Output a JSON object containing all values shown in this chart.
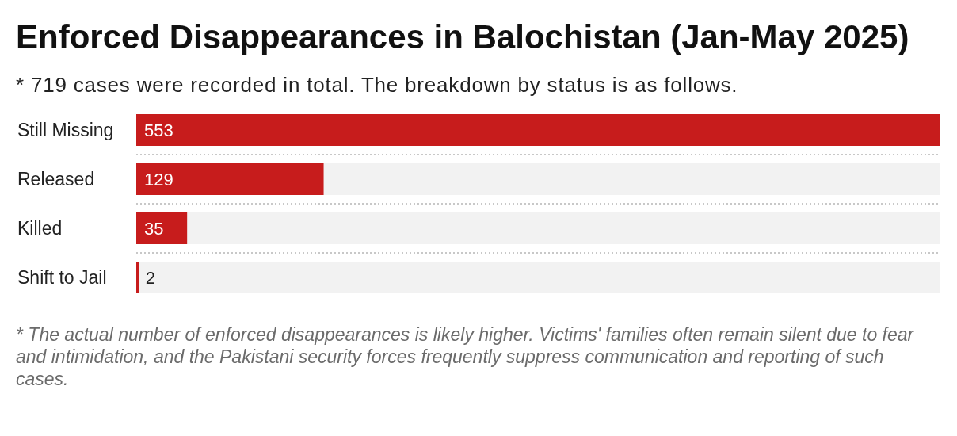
{
  "chart_data": {
    "type": "bar",
    "orientation": "horizontal",
    "title": "Enforced Disappearances in Balochistan (Jan-May 2025)",
    "subtitle": "* 719 cases were recorded in total. The breakdown by status is as follows.",
    "categories": [
      "Still Missing",
      "Released",
      "Killed",
      "Shift to Jail"
    ],
    "values": [
      553,
      129,
      35,
      2
    ],
    "color": "#c71c1c",
    "data_labels": true,
    "grid": "y",
    "tick_labels": "y",
    "annotations": [
      "* The actual number of enforced disappearances is likely higher. Victims' families often remain silent due to fear and intimidation, and the Pakistani security forces frequently suppress communication and reporting of such cases."
    ]
  }
}
